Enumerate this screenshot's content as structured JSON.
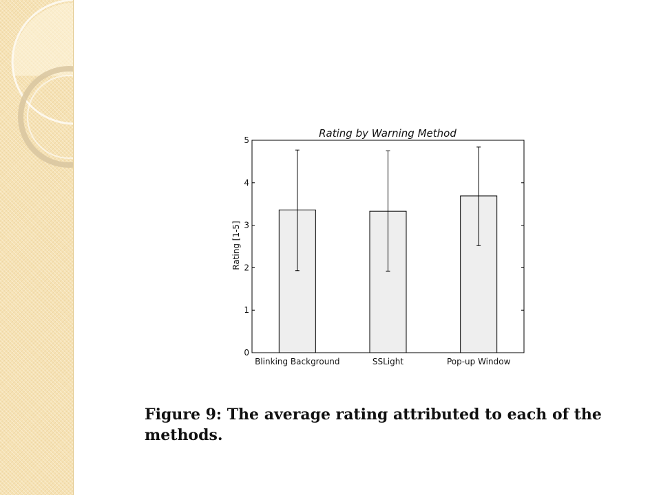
{
  "theme": {
    "sidebar_color": "#f6e2b4",
    "bar_fill": "#eeeeee",
    "bar_stroke": "#000000"
  },
  "chart_data": {
    "type": "bar",
    "title": "Rating by Warning Method",
    "xlabel": "",
    "ylabel": "Rating [1-5]",
    "categories": [
      "Blinking Background",
      "SSLight",
      "Pop-up Window"
    ],
    "values": [
      3.36,
      3.33,
      3.69
    ],
    "error_low": [
      1.93,
      1.92,
      2.52
    ],
    "error_high": [
      4.77,
      4.75,
      4.84
    ],
    "ylim": [
      0,
      5
    ],
    "yticks": [
      "0",
      "1",
      "2",
      "3",
      "4",
      "5"
    ],
    "grid": false
  },
  "caption": "Figure 9:  The average rating attributed to each of the methods."
}
